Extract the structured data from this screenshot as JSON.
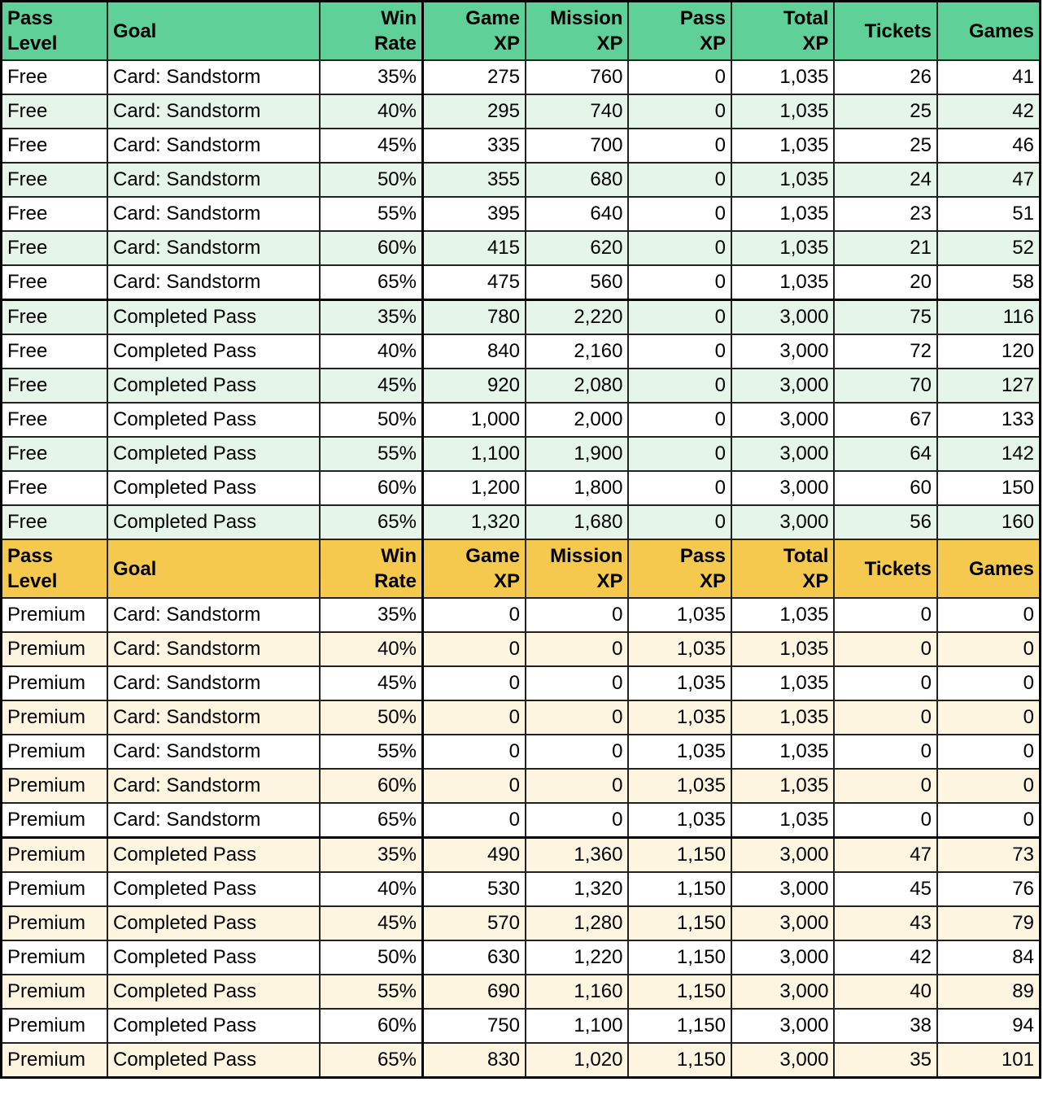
{
  "tables": [
    {
      "header": [
        "Pass Level",
        "Goal",
        "Win Rate",
        "Game XP",
        "Mission XP",
        "Pass XP",
        "Total XP",
        "Tickets",
        "Games"
      ],
      "rows": [
        [
          "Free",
          "Card: Sandstorm",
          "35%",
          "275",
          "760",
          "0",
          "1,035",
          "26",
          "41"
        ],
        [
          "Free",
          "Card: Sandstorm",
          "40%",
          "295",
          "740",
          "0",
          "1,035",
          "25",
          "42"
        ],
        [
          "Free",
          "Card: Sandstorm",
          "45%",
          "335",
          "700",
          "0",
          "1,035",
          "25",
          "46"
        ],
        [
          "Free",
          "Card: Sandstorm",
          "50%",
          "355",
          "680",
          "0",
          "1,035",
          "24",
          "47"
        ],
        [
          "Free",
          "Card: Sandstorm",
          "55%",
          "395",
          "640",
          "0",
          "1,035",
          "23",
          "51"
        ],
        [
          "Free",
          "Card: Sandstorm",
          "60%",
          "415",
          "620",
          "0",
          "1,035",
          "21",
          "52"
        ],
        [
          "Free",
          "Card: Sandstorm",
          "65%",
          "475",
          "560",
          "0",
          "1,035",
          "20",
          "58"
        ],
        [
          "Free",
          "Completed Pass",
          "35%",
          "780",
          "2,220",
          "0",
          "3,000",
          "75",
          "116"
        ],
        [
          "Free",
          "Completed Pass",
          "40%",
          "840",
          "2,160",
          "0",
          "3,000",
          "72",
          "120"
        ],
        [
          "Free",
          "Completed Pass",
          "45%",
          "920",
          "2,080",
          "0",
          "3,000",
          "70",
          "127"
        ],
        [
          "Free",
          "Completed Pass",
          "50%",
          "1,000",
          "2,000",
          "0",
          "3,000",
          "67",
          "133"
        ],
        [
          "Free",
          "Completed Pass",
          "55%",
          "1,100",
          "1,900",
          "0",
          "3,000",
          "64",
          "142"
        ],
        [
          "Free",
          "Completed Pass",
          "60%",
          "1,200",
          "1,800",
          "0",
          "3,000",
          "60",
          "150"
        ],
        [
          "Free",
          "Completed Pass",
          "65%",
          "1,320",
          "1,680",
          "0",
          "3,000",
          "56",
          "160"
        ]
      ]
    },
    {
      "header": [
        "Pass Level",
        "Goal",
        "Win Rate",
        "Game XP",
        "Mission XP",
        "Pass XP",
        "Total XP",
        "Tickets",
        "Games"
      ],
      "rows": [
        [
          "Premium",
          "Card: Sandstorm",
          "35%",
          "0",
          "0",
          "1,035",
          "1,035",
          "0",
          "0"
        ],
        [
          "Premium",
          "Card: Sandstorm",
          "40%",
          "0",
          "0",
          "1,035",
          "1,035",
          "0",
          "0"
        ],
        [
          "Premium",
          "Card: Sandstorm",
          "45%",
          "0",
          "0",
          "1,035",
          "1,035",
          "0",
          "0"
        ],
        [
          "Premium",
          "Card: Sandstorm",
          "50%",
          "0",
          "0",
          "1,035",
          "1,035",
          "0",
          "0"
        ],
        [
          "Premium",
          "Card: Sandstorm",
          "55%",
          "0",
          "0",
          "1,035",
          "1,035",
          "0",
          "0"
        ],
        [
          "Premium",
          "Card: Sandstorm",
          "60%",
          "0",
          "0",
          "1,035",
          "1,035",
          "0",
          "0"
        ],
        [
          "Premium",
          "Card: Sandstorm",
          "65%",
          "0",
          "0",
          "1,035",
          "1,035",
          "0",
          "0"
        ],
        [
          "Premium",
          "Completed Pass",
          "35%",
          "490",
          "1,360",
          "1,150",
          "3,000",
          "47",
          "73"
        ],
        [
          "Premium",
          "Completed Pass",
          "40%",
          "530",
          "1,320",
          "1,150",
          "3,000",
          "45",
          "76"
        ],
        [
          "Premium",
          "Completed Pass",
          "45%",
          "570",
          "1,280",
          "1,150",
          "3,000",
          "43",
          "79"
        ],
        [
          "Premium",
          "Completed Pass",
          "50%",
          "630",
          "1,220",
          "1,150",
          "3,000",
          "42",
          "84"
        ],
        [
          "Premium",
          "Completed Pass",
          "55%",
          "690",
          "1,160",
          "1,150",
          "3,000",
          "40",
          "89"
        ],
        [
          "Premium",
          "Completed Pass",
          "60%",
          "750",
          "1,100",
          "1,150",
          "3,000",
          "38",
          "94"
        ],
        [
          "Premium",
          "Completed Pass",
          "65%",
          "830",
          "1,020",
          "1,150",
          "3,000",
          "35",
          "101"
        ]
      ]
    }
  ]
}
